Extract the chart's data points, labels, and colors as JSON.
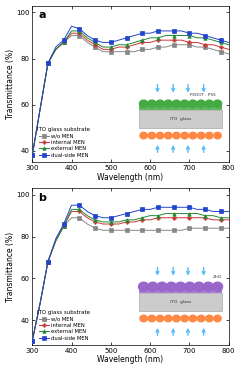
{
  "panel_a": {
    "label": "a",
    "ylabel": "Transmittance (%)",
    "xlabel": "Wavelength (nm)",
    "xlim": [
      300,
      800
    ],
    "ylim": [
      35,
      103
    ],
    "yticks": [
      40,
      60,
      80,
      100
    ],
    "xticks": [
      300,
      400,
      500,
      600,
      700,
      800
    ],
    "legend_title": "ITO glass substrate",
    "inset_label": "PEDOT : PSS",
    "inset_color": "#44aa44",
    "series": [
      {
        "label": "w/o MEN",
        "color": "#888888",
        "marker": "s",
        "wavelengths": [
          300,
          320,
          340,
          360,
          380,
          400,
          420,
          440,
          460,
          480,
          500,
          520,
          540,
          560,
          580,
          600,
          620,
          640,
          660,
          680,
          700,
          720,
          740,
          760,
          780,
          800
        ],
        "transmittance": [
          38,
          58,
          78,
          84,
          87,
          90,
          90,
          87,
          85,
          83,
          83,
          83,
          83,
          83,
          84,
          84,
          85,
          85,
          86,
          86,
          86,
          85,
          85,
          84,
          83,
          82
        ]
      },
      {
        "label": "internal MEN",
        "color": "#cc3333",
        "marker": "+",
        "wavelengths": [
          300,
          320,
          340,
          360,
          380,
          400,
          420,
          440,
          460,
          480,
          500,
          520,
          540,
          560,
          580,
          600,
          620,
          640,
          660,
          680,
          700,
          720,
          740,
          760,
          780,
          800
        ],
        "transmittance": [
          38,
          58,
          78,
          84,
          87,
          91,
          91,
          88,
          86,
          84,
          84,
          85,
          85,
          86,
          87,
          87,
          88,
          88,
          88,
          88,
          87,
          87,
          86,
          86,
          85,
          84
        ]
      },
      {
        "label": "external MEN",
        "color": "#228833",
        "marker": "^",
        "wavelengths": [
          300,
          320,
          340,
          360,
          380,
          400,
          420,
          440,
          460,
          480,
          500,
          520,
          540,
          560,
          580,
          600,
          620,
          640,
          660,
          680,
          700,
          720,
          740,
          760,
          780,
          800
        ],
        "transmittance": [
          38,
          58,
          78,
          84,
          87,
          92,
          92,
          89,
          87,
          85,
          85,
          86,
          86,
          87,
          88,
          89,
          89,
          90,
          90,
          90,
          90,
          89,
          89,
          88,
          87,
          86
        ]
      },
      {
        "label": "dual-side MEN",
        "color": "#2244cc",
        "marker": "s",
        "wavelengths": [
          300,
          320,
          340,
          360,
          380,
          400,
          420,
          440,
          460,
          480,
          500,
          520,
          540,
          560,
          580,
          600,
          620,
          640,
          660,
          680,
          700,
          720,
          740,
          760,
          780,
          800
        ],
        "transmittance": [
          38,
          58,
          78,
          85,
          88,
          94,
          93,
          90,
          88,
          87,
          87,
          88,
          89,
          90,
          91,
          91,
          92,
          92,
          92,
          92,
          91,
          91,
          90,
          89,
          88,
          87
        ]
      }
    ]
  },
  "panel_b": {
    "label": "b",
    "ylabel": "Transmittance (%)",
    "xlabel": "Wavelength (nm)",
    "xlim": [
      300,
      800
    ],
    "ylim": [
      28,
      103
    ],
    "yticks": [
      40,
      60,
      80,
      100
    ],
    "xticks": [
      300,
      400,
      500,
      600,
      700,
      800
    ],
    "legend_title": "ITO glass substrate",
    "inset_label": "ZnO",
    "inset_color": "#9966cc",
    "series": [
      {
        "label": "w/o MEN",
        "color": "#888888",
        "marker": "s",
        "wavelengths": [
          300,
          320,
          340,
          360,
          380,
          400,
          420,
          440,
          460,
          480,
          500,
          520,
          540,
          560,
          580,
          600,
          620,
          640,
          660,
          680,
          700,
          720,
          740,
          760,
          780,
          800
        ],
        "transmittance": [
          30,
          48,
          68,
          78,
          85,
          89,
          89,
          86,
          84,
          83,
          83,
          83,
          83,
          83,
          83,
          83,
          83,
          83,
          83,
          83,
          84,
          84,
          84,
          84,
          84,
          84
        ]
      },
      {
        "label": "internal MEN",
        "color": "#cc3333",
        "marker": "+",
        "wavelengths": [
          300,
          320,
          340,
          360,
          380,
          400,
          420,
          440,
          460,
          480,
          500,
          520,
          540,
          560,
          580,
          600,
          620,
          640,
          660,
          680,
          700,
          720,
          740,
          760,
          780,
          800
        ],
        "transmittance": [
          30,
          48,
          68,
          78,
          85,
          92,
          92,
          89,
          87,
          86,
          86,
          86,
          87,
          87,
          88,
          88,
          89,
          89,
          89,
          89,
          89,
          89,
          89,
          88,
          88,
          88
        ]
      },
      {
        "label": "external MEN",
        "color": "#228833",
        "marker": "^",
        "wavelengths": [
          300,
          320,
          340,
          360,
          380,
          400,
          420,
          440,
          460,
          480,
          500,
          520,
          540,
          560,
          580,
          600,
          620,
          640,
          660,
          680,
          700,
          720,
          740,
          760,
          780,
          800
        ],
        "transmittance": [
          30,
          48,
          68,
          78,
          85,
          93,
          93,
          90,
          88,
          87,
          87,
          87,
          88,
          88,
          89,
          90,
          90,
          91,
          91,
          91,
          91,
          91,
          90,
          90,
          89,
          89
        ]
      },
      {
        "label": "dual-side MEN",
        "color": "#2244cc",
        "marker": "s",
        "wavelengths": [
          300,
          320,
          340,
          360,
          380,
          400,
          420,
          440,
          460,
          480,
          500,
          520,
          540,
          560,
          580,
          600,
          620,
          640,
          660,
          680,
          700,
          720,
          740,
          760,
          780,
          800
        ],
        "transmittance": [
          30,
          48,
          68,
          79,
          86,
          95,
          95,
          92,
          90,
          89,
          89,
          90,
          91,
          92,
          93,
          93,
          94,
          94,
          94,
          94,
          94,
          93,
          93,
          92,
          92,
          92
        ]
      }
    ]
  }
}
